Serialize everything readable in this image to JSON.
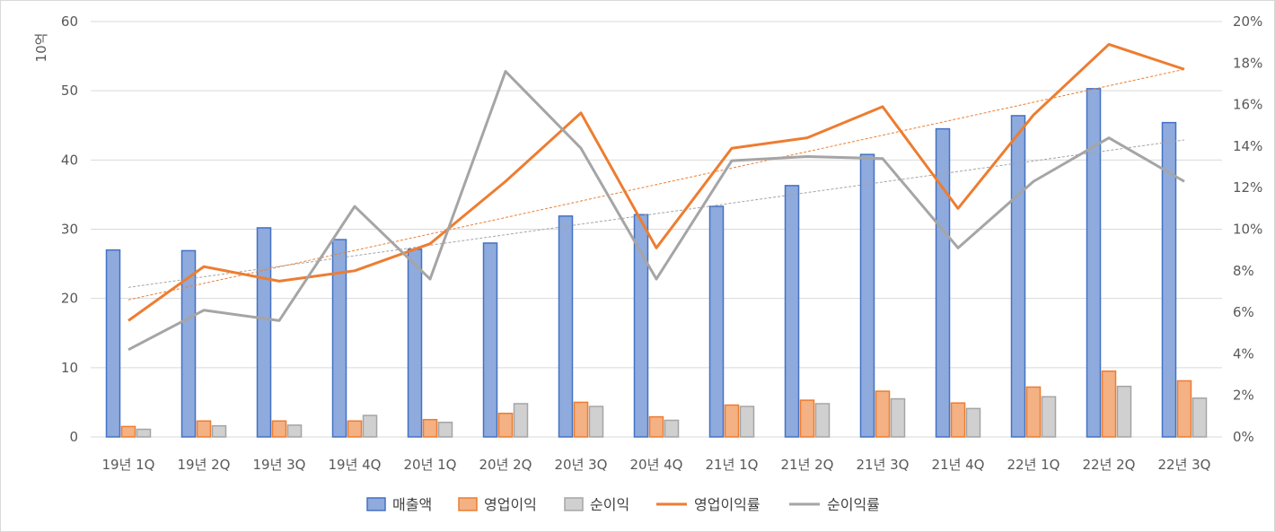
{
  "chart_data": {
    "type": "bar",
    "y_left_label": "10억",
    "categories": [
      "19년 1Q",
      "19년 2Q",
      "19년 3Q",
      "19년 4Q",
      "20년 1Q",
      "20년 2Q",
      "20년 3Q",
      "20년 4Q",
      "21년 1Q",
      "21년 2Q",
      "21년 3Q",
      "21년 4Q",
      "22년 1Q",
      "22년 2Q",
      "22년 3Q"
    ],
    "y_left_lim": [
      0,
      60
    ],
    "y_left_ticks": [
      0,
      10,
      20,
      30,
      40,
      50,
      60
    ],
    "y_right_lim": [
      0,
      20
    ],
    "y_right_ticks": [
      "0%",
      "2%",
      "4%",
      "6%",
      "8%",
      "10%",
      "12%",
      "14%",
      "16%",
      "18%",
      "20%"
    ],
    "grid": true,
    "legend_position": "bottom",
    "series": [
      {
        "name": "매출액",
        "kind": "bar",
        "axis": "left",
        "color": "#8faadc",
        "stroke": "#4472c4",
        "values": [
          27.0,
          26.9,
          30.2,
          28.5,
          27.1,
          28.0,
          31.9,
          32.1,
          33.3,
          36.3,
          40.8,
          44.5,
          46.4,
          50.3,
          45.4
        ]
      },
      {
        "name": "영업이익",
        "kind": "bar",
        "axis": "left",
        "color": "#f4b183",
        "stroke": "#ed7d31",
        "values": [
          1.5,
          2.3,
          2.3,
          2.3,
          2.5,
          3.4,
          5.0,
          2.9,
          4.6,
          5.3,
          6.6,
          4.9,
          7.2,
          9.5,
          8.1
        ]
      },
      {
        "name": "순이익",
        "kind": "bar",
        "axis": "left",
        "color": "#d0d0d0",
        "stroke": "#a5a5a5",
        "values": [
          1.1,
          1.6,
          1.7,
          3.1,
          2.1,
          4.8,
          4.4,
          2.4,
          4.4,
          4.8,
          5.5,
          4.1,
          5.8,
          7.3,
          5.6
        ]
      },
      {
        "name": "영업이익률",
        "kind": "line",
        "axis": "right",
        "color": "#ed7d31",
        "values": [
          5.6,
          8.2,
          7.5,
          8.0,
          9.3,
          12.3,
          15.6,
          9.1,
          13.9,
          14.4,
          15.9,
          11.0,
          15.5,
          18.9,
          17.7
        ]
      },
      {
        "name": "순이익률",
        "kind": "line",
        "axis": "right",
        "color": "#a5a5a5",
        "values": [
          4.2,
          6.1,
          5.6,
          11.1,
          7.6,
          17.6,
          13.9,
          7.6,
          13.3,
          13.5,
          13.4,
          9.1,
          12.3,
          14.4,
          12.3
        ]
      }
    ],
    "trendlines": [
      {
        "of": "영업이익률",
        "color": "#ed7d31",
        "from": 6.6,
        "to": 17.7
      },
      {
        "of": "순이익률",
        "color": "#a5a5a5",
        "from": 7.2,
        "to": 14.3
      }
    ]
  }
}
